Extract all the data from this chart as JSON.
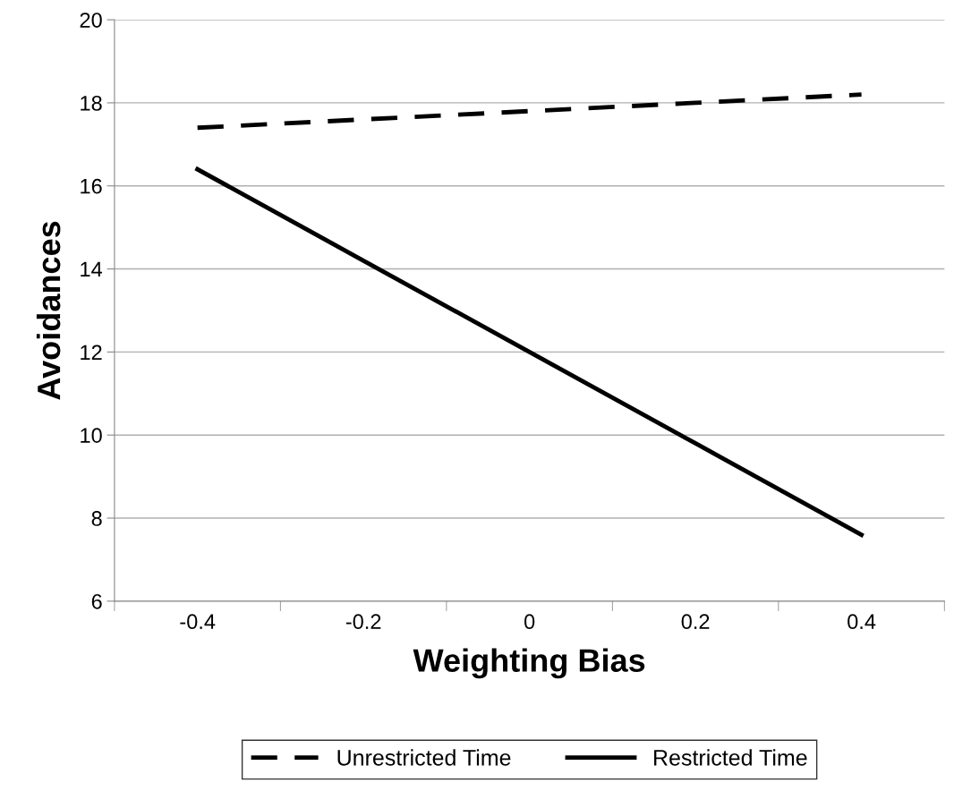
{
  "chart_data": {
    "type": "line",
    "xlabel": "Weighting Bias",
    "ylabel": "Avoidances",
    "categories": [
      "-0.4",
      "-0.2",
      "0",
      "0.2",
      "0.4"
    ],
    "series": [
      {
        "name": "Unrestricted Time",
        "color": "#000000",
        "line_style": "dashed",
        "values": [
          17.4,
          17.6,
          17.8,
          18.0,
          18.2
        ]
      },
      {
        "name": "Restricted Time",
        "color": "#000000",
        "line_style": "solid",
        "values": [
          16.4,
          14.2,
          12.0,
          9.8,
          7.6
        ]
      }
    ],
    "ylim": [
      6,
      20
    ],
    "yticks": [
      6,
      8,
      10,
      12,
      14,
      16,
      18,
      20
    ],
    "grid": "y",
    "legend": "bottom",
    "marker": "none"
  }
}
